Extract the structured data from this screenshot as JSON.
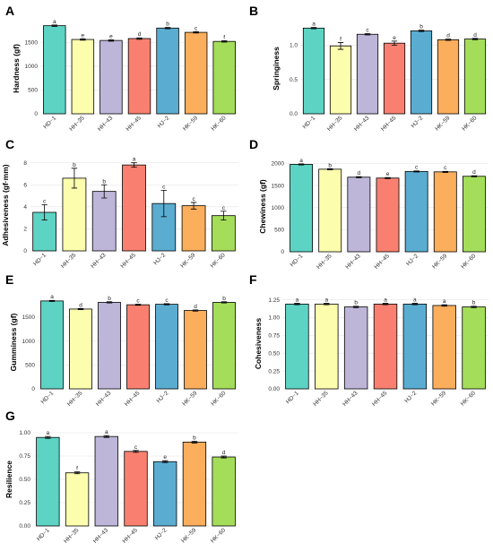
{
  "colors": [
    "#5dd3c4",
    "#fdfdae",
    "#bdb6d9",
    "#f98070",
    "#5aadd1",
    "#fbae5b",
    "#a4dd5a"
  ],
  "chart_data": [
    {
      "letter": "A",
      "type": "bar",
      "ylabel": "Hardness (gf)",
      "ylim": [
        0,
        1900
      ],
      "ticks": [
        0,
        500,
        1000,
        1500
      ],
      "categories": [
        "HD−1",
        "HH−35",
        "HH−43",
        "HH−45",
        "HJ−2",
        "HK−59",
        "HK−60"
      ],
      "values": [
        1850,
        1560,
        1540,
        1580,
        1800,
        1710,
        1520
      ],
      "errors": [
        15,
        15,
        15,
        15,
        15,
        15,
        15
      ],
      "labels": [
        "a",
        "e",
        "e",
        "d",
        "b",
        "c",
        "f"
      ]
    },
    {
      "letter": "B",
      "type": "bar",
      "ylabel": "Springiness",
      "ylim": [
        0,
        1.32
      ],
      "ticks": [
        0.0,
        0.5,
        1.0
      ],
      "categories": [
        "HD−1",
        "HH−35",
        "HH−43",
        "HH−45",
        "HJ−2",
        "HK−59",
        "HK−60"
      ],
      "values": [
        1.25,
        0.99,
        1.16,
        1.03,
        1.21,
        1.08,
        1.09
      ],
      "errors": [
        0.01,
        0.05,
        0.01,
        0.03,
        0.01,
        0.01,
        0.01
      ],
      "labels": [
        "a",
        "f",
        "c",
        "e",
        "b",
        "d",
        "d"
      ]
    },
    {
      "letter": "C",
      "type": "bar",
      "ylabel": "Adhesiveness (gf·mm)",
      "ylim": [
        0,
        8.3
      ],
      "ticks": [
        0,
        2,
        4,
        6,
        8
      ],
      "categories": [
        "HD−1",
        "HH−35",
        "HH−43",
        "HH−45",
        "HJ−2",
        "HK−59",
        "HK−60"
      ],
      "values": [
        3.5,
        6.6,
        5.4,
        7.8,
        4.3,
        4.1,
        3.2
      ],
      "errors": [
        0.7,
        0.9,
        0.6,
        0.2,
        1.2,
        0.3,
        0.4
      ],
      "labels": [
        "c",
        "b",
        "b",
        "a",
        "c",
        "c",
        "c"
      ]
    },
    {
      "letter": "D",
      "type": "bar",
      "ylabel": "Chewiness (gf)",
      "ylim": [
        0,
        2050
      ],
      "ticks": [
        0,
        500,
        1000,
        1500,
        2000
      ],
      "categories": [
        "HD−1",
        "HH−35",
        "HH−43",
        "HH−45",
        "HJ−2",
        "HK−59",
        "HK−60"
      ],
      "values": [
        1980,
        1870,
        1690,
        1670,
        1820,
        1810,
        1710
      ],
      "errors": [
        12,
        12,
        12,
        12,
        12,
        12,
        12
      ],
      "labels": [
        "a",
        "b",
        "d",
        "e",
        "c",
        "c",
        "d"
      ]
    },
    {
      "letter": "E",
      "type": "bar",
      "ylabel": "Gumminess (gf)",
      "ylim": [
        0,
        1950
      ],
      "ticks": [
        0,
        500,
        1000,
        1500
      ],
      "categories": [
        "HD−1",
        "HH−35",
        "HH−43",
        "HH−45",
        "HJ−2",
        "HK−59",
        "HK−60"
      ],
      "values": [
        1840,
        1670,
        1810,
        1760,
        1770,
        1640,
        1810
      ],
      "errors": [
        12,
        12,
        12,
        12,
        12,
        12,
        12
      ],
      "labels": [
        "a",
        "d",
        "b",
        "c",
        "c",
        "d",
        "b"
      ]
    },
    {
      "letter": "F",
      "type": "bar",
      "ylabel": "Cohesiveness",
      "ylim": [
        0,
        1.27
      ],
      "ticks": [
        0.0,
        0.25,
        0.5,
        0.75,
        1.0,
        1.25
      ],
      "categories": [
        "HD−1",
        "HH−35",
        "HH−43",
        "HH−45",
        "HJ−2",
        "HK−59",
        "HK−60"
      ],
      "values": [
        1.19,
        1.19,
        1.15,
        1.19,
        1.19,
        1.17,
        1.15
      ],
      "errors": [
        0.01,
        0.01,
        0.01,
        0.01,
        0.01,
        0.01,
        0.01
      ],
      "labels": [
        "a",
        "a",
        "b",
        "a",
        "a",
        "a",
        "b"
      ]
    },
    {
      "letter": "G",
      "type": "bar",
      "ylabel": "Resilience",
      "ylim": [
        0,
        1.0
      ],
      "ticks": [
        0.0,
        0.25,
        0.5,
        0.75,
        1.0
      ],
      "categories": [
        "HD−1",
        "HH−35",
        "HH−43",
        "HH−45",
        "HJ−2",
        "HK−59",
        "HK−60"
      ],
      "values": [
        0.95,
        0.57,
        0.96,
        0.8,
        0.69,
        0.9,
        0.74
      ],
      "errors": [
        0.01,
        0.01,
        0.01,
        0.01,
        0.01,
        0.01,
        0.01
      ],
      "labels": [
        "a",
        "f",
        "a",
        "c",
        "e",
        "b",
        "d"
      ]
    }
  ]
}
